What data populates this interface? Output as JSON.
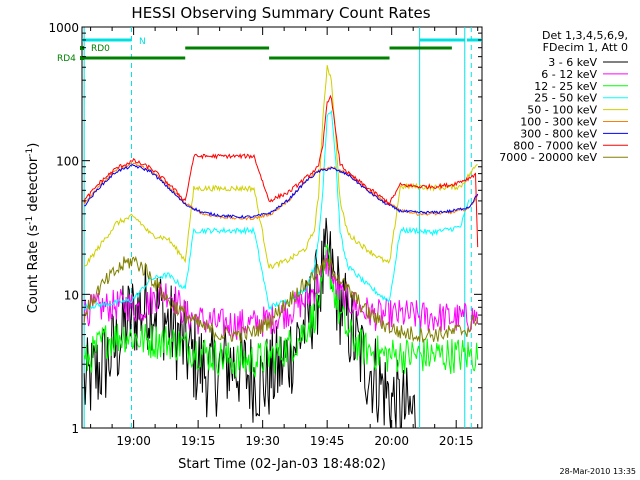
{
  "chart_data": {
    "type": "line",
    "title": "HESSI Observing Summary Count Rates",
    "xlabel": "Start Time (02-Jan-03 18:48:02)",
    "ylabel_main": "Count Rate (s",
    "ylabel_sup1": "-1",
    "ylabel_mid": " detector",
    "ylabel_sup2": "-1",
    "ylabel_end": ")",
    "ylog": true,
    "ylim": [
      1,
      1000
    ],
    "xlim_min": [
      0,
      93
    ],
    "x_ticks": [
      {
        "min": 12,
        "label": "19:00"
      },
      {
        "min": 27,
        "label": "19:15"
      },
      {
        "min": 42,
        "label": "19:30"
      },
      {
        "min": 57,
        "label": "19:45"
      },
      {
        "min": 72,
        "label": "20:00"
      },
      {
        "min": 87,
        "label": "20:15"
      }
    ],
    "y_ticks": [
      {
        "v": 1,
        "label": "1"
      },
      {
        "v": 10,
        "label": "10"
      },
      {
        "v": 100,
        "label": "100"
      },
      {
        "v": 1000,
        "label": "1000"
      }
    ],
    "legend_header": [
      "Det 1,3,4,5,6,9,",
      "FDecim 1, Att 0"
    ],
    "legend_position": "right",
    "timestamp": "28-Mar-2010 13:35",
    "flag_labels": {
      "n": "N",
      "rd0": "RD0",
      "rd4": "RD4"
    },
    "flags": [
      {
        "label": "N",
        "color": "#00e0e0",
        "segments": [
          [
            0,
            11.5
          ],
          [
            78.5,
            89
          ],
          [
            89.5,
            93
          ]
        ]
      },
      {
        "label": "RD0",
        "color": "#008000",
        "segments": [
          [
            24,
            43.5
          ],
          [
            71.5,
            86
          ]
        ]
      },
      {
        "label": "RD4",
        "color": "#008000",
        "segments": [
          [
            0,
            24
          ],
          [
            43.5,
            71.5
          ]
        ]
      }
    ],
    "vlines": [
      {
        "x_min": 0.5,
        "style": "solid",
        "color": "#00e0e0"
      },
      {
        "x_min": 11.5,
        "style": "dashed",
        "color": "#00e0e0"
      },
      {
        "x_min": 78.5,
        "style": "solid",
        "color": "#00e0e0"
      },
      {
        "x_min": 89,
        "style": "solid",
        "color": "#00e0e0"
      },
      {
        "x_min": 90.5,
        "style": "dashed",
        "color": "#00e0e0"
      }
    ],
    "series": [
      {
        "name": "3 - 6 keV",
        "color": "#000000",
        "x": [
          0.5,
          5,
          8,
          10,
          12,
          14,
          16,
          18,
          20,
          22,
          24,
          27,
          30,
          33,
          36,
          39,
          42,
          44,
          46,
          48,
          50,
          52,
          54,
          56,
          57,
          58,
          59,
          60,
          62,
          64,
          66,
          68,
          70,
          72,
          74,
          76,
          78
        ],
        "y": [
          2.0,
          3.0,
          4.0,
          6.0,
          7.0,
          8.0,
          8.5,
          8.0,
          6.0,
          5.0,
          4.0,
          3.0,
          2.5,
          3.0,
          3.0,
          2.5,
          2.2,
          2.5,
          2.8,
          3.5,
          4.5,
          6.0,
          9.0,
          14.0,
          18.0,
          15.0,
          11.0,
          9.0,
          6.0,
          4.0,
          3.0,
          2.5,
          2.0,
          1.6,
          1.4,
          1.3,
          1.2
        ]
      },
      {
        "name": "6 - 12 keV",
        "color": "#ff00ff",
        "x": [
          0.5,
          5,
          10,
          12,
          14,
          16,
          18,
          20,
          22,
          24,
          27,
          32,
          36,
          40,
          44,
          48,
          52,
          55,
          57,
          58,
          59,
          60,
          62,
          64,
          66,
          68,
          70,
          72,
          76,
          80,
          84,
          88,
          92
        ],
        "y": [
          7.5,
          8.0,
          8.5,
          8.0,
          8.0,
          9.0,
          10.0,
          10.5,
          9.0,
          7.0,
          6.5,
          6.0,
          6.0,
          6.0,
          6.5,
          7.5,
          9.0,
          12.0,
          18.0,
          14.0,
          11.0,
          10.0,
          9.0,
          8.0,
          7.5,
          7.0,
          7.0,
          7.0,
          7.0,
          6.8,
          6.7,
          6.6,
          6.8
        ]
      },
      {
        "name": "12 - 25 keV",
        "color": "#00ff00",
        "x": [
          0.5,
          5,
          10,
          15,
          20,
          25,
          30,
          35,
          40,
          45,
          50,
          54,
          56,
          57,
          58,
          60,
          62,
          65,
          70,
          75,
          80,
          85,
          92
        ],
        "y": [
          3.0,
          4.5,
          5.0,
          4.5,
          4.5,
          4.0,
          3.5,
          3.2,
          3.2,
          3.5,
          4.5,
          7.0,
          11.0,
          20.0,
          13.0,
          7.0,
          5.0,
          4.0,
          3.5,
          3.5,
          3.5,
          3.5,
          3.5
        ]
      },
      {
        "name": "25 - 50 keV",
        "color": "#00ffff",
        "x": [
          0.5,
          11.5,
          13,
          16,
          20,
          24,
          26,
          30,
          35,
          40,
          43.5,
          48,
          52,
          54,
          55,
          56,
          57,
          58,
          59,
          60,
          61,
          62,
          66,
          70,
          71.5,
          74,
          78,
          81,
          84,
          88,
          90
        ],
        "y": [
          8.0,
          9.0,
          10.0,
          13.0,
          14.0,
          11.0,
          30.0,
          30.0,
          30.0,
          30.0,
          8.0,
          9.0,
          11.0,
          16.0,
          25.0,
          60.0,
          220.0,
          240.0,
          100.0,
          30.0,
          20.0,
          16.0,
          12.0,
          9.5,
          9.0,
          30.0,
          30.0,
          29.0,
          30.0,
          32.0,
          50.0
        ]
      },
      {
        "name": "50 - 100 keV",
        "color": "#d0d000",
        "x": [
          0.5,
          8,
          11.5,
          13,
          16,
          20,
          24,
          26,
          30,
          35,
          40,
          43.5,
          48,
          52,
          54,
          55,
          56,
          57,
          58,
          59,
          60,
          61,
          62,
          66,
          70,
          71.5,
          74,
          78,
          81,
          84,
          88,
          92
        ],
        "y": [
          16.0,
          34.0,
          38.0,
          36.0,
          28.0,
          26.0,
          18.0,
          62.0,
          62.0,
          62.0,
          62.0,
          16.0,
          18.0,
          22.0,
          30.0,
          55.0,
          200.0,
          520.0,
          400.0,
          150.0,
          50.0,
          36.0,
          28.0,
          22.0,
          18.0,
          17.0,
          64.0,
          64.0,
          63.0,
          63.0,
          64.0,
          95.0
        ]
      },
      {
        "name": "100 - 300 keV",
        "color": "#ff8000",
        "x": [
          0.5,
          4,
          8,
          12,
          16,
          20,
          24,
          28,
          32,
          36,
          40,
          44,
          48,
          52,
          55,
          58,
          62,
          66,
          70,
          74,
          78,
          82,
          86,
          90,
          92
        ],
        "y": [
          48.0,
          65.0,
          85.0,
          95.0,
          85.0,
          65.0,
          48.0,
          40.0,
          38.0,
          37.0,
          37.0,
          40.0,
          50.0,
          70.0,
          85.0,
          90.0,
          80.0,
          62.0,
          50.0,
          43.0,
          40.0,
          40.0,
          41.0,
          44.0,
          55.0
        ]
      },
      {
        "name": "300 - 800 keV",
        "color": "#0000ff",
        "x": [
          0.5,
          4,
          8,
          12,
          16,
          20,
          24,
          28,
          32,
          36,
          40,
          44,
          48,
          52,
          55,
          58,
          62,
          66,
          70,
          74,
          78,
          82,
          86,
          90,
          92
        ],
        "y": [
          46.0,
          63.0,
          83.0,
          92.0,
          83.0,
          63.0,
          47.0,
          41.0,
          39.0,
          38.0,
          38.0,
          41.0,
          51.0,
          70.0,
          83.0,
          88.0,
          78.0,
          61.0,
          49.0,
          42.0,
          41.0,
          41.0,
          42.0,
          45.0,
          56.0
        ]
      },
      {
        "name": "800 - 7000 keV",
        "color": "#ff0000",
        "x": [
          0.5,
          4,
          8,
          12,
          16,
          20,
          24,
          26,
          30,
          35,
          40,
          43.5,
          48,
          52,
          55,
          56,
          57,
          58,
          59,
          60,
          62,
          66,
          70,
          71.5,
          74,
          78,
          82,
          86,
          90,
          91.5,
          92
        ],
        "y": [
          50.0,
          68.0,
          88.0,
          100.0,
          88.0,
          68.0,
          50.0,
          108.0,
          108.0,
          108.0,
          108.0,
          50.0,
          58.0,
          74.0,
          90.0,
          130.0,
          280.0,
          300.0,
          160.0,
          95.0,
          80.0,
          64.0,
          52.0,
          48.0,
          66.0,
          64.0,
          64.0,
          66.0,
          74.0,
          80.0,
          22.0
        ]
      },
      {
        "name": "7000 - 20000 keV",
        "color": "#808000",
        "x": [
          0.5,
          4,
          8,
          10,
          12,
          15,
          18,
          20,
          22,
          24,
          27,
          32,
          36,
          40,
          44,
          48,
          52,
          55,
          57,
          58,
          60,
          62,
          64,
          66,
          70,
          74,
          78,
          82,
          86,
          90,
          92
        ],
        "y": [
          7.0,
          11.0,
          15.0,
          17.0,
          18.0,
          15.0,
          11.0,
          9.0,
          8.0,
          7.0,
          6.0,
          5.0,
          5.0,
          5.2,
          6.5,
          9.0,
          12.0,
          15.0,
          17.0,
          16.0,
          13.0,
          10.5,
          9.0,
          7.5,
          6.0,
          5.2,
          5.0,
          5.0,
          5.2,
          5.5,
          7.0
        ]
      }
    ]
  }
}
